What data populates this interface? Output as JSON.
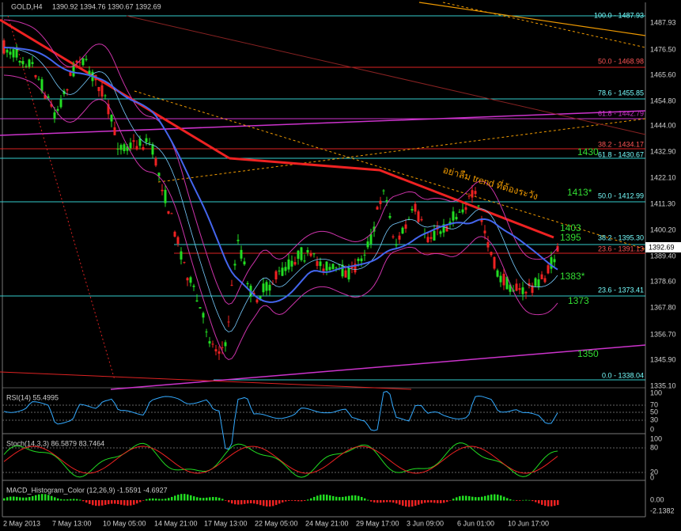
{
  "header": {
    "symbol": "GOLD,H4",
    "ohlc": "1390.92 1394.76 1390.67 1392.69"
  },
  "price_axis": [
    "1487.93",
    "1476.50",
    "1465.60",
    "1454.80",
    "1444.00",
    "1432.90",
    "1422.10",
    "1411.30",
    "1400.20",
    "1389.40",
    "1378.60",
    "1367.80",
    "1356.70",
    "1345.90",
    "1335.10"
  ],
  "current_price": "1392.69",
  "fib_labels": [
    "100.0 - 1487.93",
    "50.0 - 1468.98",
    "78.6 - 1455.85",
    "61.8 - 1442.79",
    "38.2 - 1434.17",
    "61.8 - 1430.67",
    "50.0 - 1412.99",
    "38.2 - 1395.30",
    "23.6 - 1391.13",
    "23.6 - 1373.41",
    "0.0 - 1338.04"
  ],
  "annotations": [
    "1430",
    "1413*",
    "1403",
    "1395",
    "1383*",
    "1373",
    "1350"
  ],
  "note": "อย่าลืม trend ที่ต้องระวัง",
  "rsi": {
    "title": "RSI(14) 55.4995",
    "axis": [
      "100",
      "70",
      "50",
      "30",
      "0"
    ]
  },
  "stoch": {
    "title": "Stoch(14,3,3) 86.5879 83.7464",
    "axis": [
      "100",
      "80",
      "20",
      "0"
    ]
  },
  "macd": {
    "title": "MACD_Histogram_Color (12,26,9) -1.5591 -4.6927",
    "axis": [
      "0.00",
      "-2.1382"
    ]
  },
  "dates": [
    "2 May 2013",
    "7 May 13:00",
    "10 May 05:00",
    "14 May 21:00",
    "17 May 13:00",
    "22 May 05:00",
    "24 May 21:00",
    "29 May 17:00",
    "3 Jun 09:00",
    "6 Jun 01:00",
    "10 Jun 17:00"
  ]
}
